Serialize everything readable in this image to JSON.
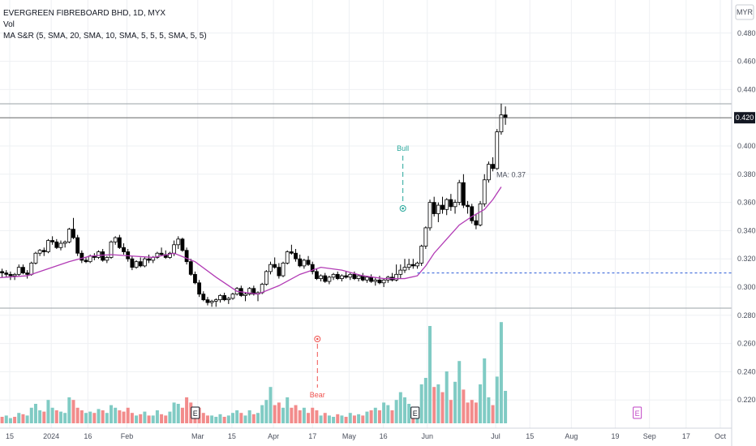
{
  "legend": {
    "title": "EVERGREEN FIBREBOARD BHD, 1D, MYX",
    "vol": "Vol",
    "indicator": "MA S&R (5, SMA, 20, SMA, 10, SMA, 5, 5, 5, SMA, 5, 5)"
  },
  "currency": "MYR",
  "last_price_label": "0.420",
  "ma_label": "MA: 0.37",
  "signals": {
    "bull": "Bull",
    "bear": "Bear"
  },
  "earnings_marker": "E",
  "colors": {
    "up_candle": "#ffffff",
    "down_candle": "#000000",
    "candle_outline": "#000000",
    "ma_line": "#b23bb5",
    "support_line": "#2a5bd7",
    "bull_signal": "#26a69a",
    "bear_signal": "#ef5350",
    "volume_up": "#80cbc4",
    "volume_down": "#f28b8b",
    "future_earnings": "#c043c6"
  },
  "chart_data": {
    "type": "candlestick",
    "price_axis_ticks": [
      "0.480",
      "0.460",
      "0.440",
      "0.420",
      "0.400",
      "0.380",
      "0.360",
      "0.340",
      "0.320",
      "0.300",
      "0.280",
      "0.260",
      "0.240",
      "0.220"
    ],
    "time_axis_labels": [
      {
        "label": "15",
        "date": "2023-12-15"
      },
      {
        "label": "2024",
        "date": "2024-01-01"
      },
      {
        "label": "16",
        "date": "2024-01-16"
      },
      {
        "label": "Feb",
        "date": "2024-02-01"
      },
      {
        "label": "Mar",
        "date": "2024-03-01"
      },
      {
        "label": "15",
        "date": "2024-03-15"
      },
      {
        "label": "Apr",
        "date": "2024-04-01"
      },
      {
        "label": "17",
        "date": "2024-04-17"
      },
      {
        "label": "May",
        "date": "2024-05-02"
      },
      {
        "label": "16",
        "date": "2024-05-16"
      },
      {
        "label": "Jun",
        "date": "2024-06-03"
      },
      {
        "label": "Jul",
        "date": "2024-07-01"
      },
      {
        "label": "15",
        "date": "2024-07-15"
      },
      {
        "label": "Aug",
        "date": "2024-08-01"
      },
      {
        "label": "19",
        "date": "2024-08-19"
      },
      {
        "label": "Sep",
        "date": "2024-09-02"
      },
      {
        "label": "17",
        "date": "2024-09-17"
      },
      {
        "label": "Oct",
        "date": "2024-10-01"
      }
    ],
    "start_date": "2023-12-05",
    "candles": [
      [
        0.305,
        0.308,
        0.302,
        0.305
      ],
      [
        0.305,
        0.31,
        0.303,
        0.309
      ],
      [
        0.309,
        0.316,
        0.308,
        0.314
      ],
      [
        0.314,
        0.316,
        0.31,
        0.311
      ],
      [
        0.311,
        0.313,
        0.307,
        0.31
      ],
      [
        0.31,
        0.312,
        0.307,
        0.309
      ],
      [
        0.309,
        0.311,
        0.305,
        0.308
      ],
      [
        0.308,
        0.31,
        0.305,
        0.309
      ],
      [
        0.309,
        0.316,
        0.308,
        0.314
      ],
      [
        0.314,
        0.316,
        0.309,
        0.31
      ],
      [
        0.31,
        0.312,
        0.306,
        0.309
      ],
      [
        0.309,
        0.318,
        0.308,
        0.317
      ],
      [
        0.317,
        0.325,
        0.316,
        0.324
      ],
      [
        0.324,
        0.327,
        0.322,
        0.326
      ],
      [
        0.326,
        0.328,
        0.322,
        0.325
      ],
      [
        0.325,
        0.334,
        0.324,
        0.333
      ],
      [
        0.333,
        0.336,
        0.33,
        0.332
      ],
      [
        0.332,
        0.334,
        0.327,
        0.328
      ],
      [
        0.328,
        0.333,
        0.326,
        0.331
      ],
      [
        0.331,
        0.333,
        0.328,
        0.332
      ],
      [
        0.332,
        0.342,
        0.331,
        0.341
      ],
      [
        0.341,
        0.349,
        0.334,
        0.335
      ],
      [
        0.335,
        0.337,
        0.322,
        0.324
      ],
      [
        0.324,
        0.326,
        0.317,
        0.319
      ],
      [
        0.319,
        0.321,
        0.317,
        0.318
      ],
      [
        0.318,
        0.323,
        0.317,
        0.322
      ],
      [
        0.322,
        0.324,
        0.319,
        0.321
      ],
      [
        0.321,
        0.326,
        0.32,
        0.325
      ],
      [
        0.325,
        0.327,
        0.318,
        0.319
      ],
      [
        0.319,
        0.322,
        0.317,
        0.321
      ],
      [
        0.321,
        0.333,
        0.32,
        0.332
      ],
      [
        0.332,
        0.336,
        0.33,
        0.335
      ],
      [
        0.335,
        0.337,
        0.327,
        0.328
      ],
      [
        0.328,
        0.331,
        0.323,
        0.325
      ],
      [
        0.325,
        0.327,
        0.318,
        0.32
      ],
      [
        0.32,
        0.322,
        0.312,
        0.314
      ],
      [
        0.314,
        0.319,
        0.313,
        0.318
      ],
      [
        0.318,
        0.321,
        0.314,
        0.315
      ],
      [
        0.315,
        0.321,
        0.314,
        0.32
      ],
      [
        0.32,
        0.323,
        0.317,
        0.319
      ],
      [
        0.319,
        0.322,
        0.317,
        0.321
      ],
      [
        0.321,
        0.325,
        0.32,
        0.324
      ],
      [
        0.324,
        0.328,
        0.322,
        0.323
      ],
      [
        0.323,
        0.326,
        0.32,
        0.321
      ],
      [
        0.321,
        0.325,
        0.32,
        0.324
      ],
      [
        0.324,
        0.333,
        0.322,
        0.33
      ],
      [
        0.33,
        0.336,
        0.327,
        0.334
      ],
      [
        0.334,
        0.335,
        0.325,
        0.326
      ],
      [
        0.326,
        0.328,
        0.316,
        0.318
      ],
      [
        0.318,
        0.32,
        0.308,
        0.309
      ],
      [
        0.309,
        0.311,
        0.302,
        0.303
      ],
      [
        0.303,
        0.305,
        0.293,
        0.295
      ],
      [
        0.295,
        0.297,
        0.29,
        0.291
      ],
      [
        0.291,
        0.293,
        0.287,
        0.289
      ],
      [
        0.289,
        0.291,
        0.286,
        0.29
      ],
      [
        0.29,
        0.292,
        0.286,
        0.291
      ],
      [
        0.291,
        0.295,
        0.289,
        0.294
      ],
      [
        0.294,
        0.296,
        0.29,
        0.291
      ],
      [
        0.291,
        0.293,
        0.288,
        0.292
      ],
      [
        0.292,
        0.296,
        0.291,
        0.295
      ],
      [
        0.295,
        0.3,
        0.294,
        0.299
      ],
      [
        0.299,
        0.301,
        0.293,
        0.294
      ],
      [
        0.294,
        0.296,
        0.29,
        0.295
      ],
      [
        0.295,
        0.3,
        0.294,
        0.299
      ],
      [
        0.299,
        0.301,
        0.294,
        0.295
      ],
      [
        0.295,
        0.297,
        0.29,
        0.296
      ],
      [
        0.296,
        0.303,
        0.295,
        0.302
      ],
      [
        0.302,
        0.312,
        0.301,
        0.311
      ],
      [
        0.311,
        0.318,
        0.309,
        0.316
      ],
      [
        0.316,
        0.321,
        0.313,
        0.314
      ],
      [
        0.314,
        0.317,
        0.306,
        0.308
      ],
      [
        0.308,
        0.318,
        0.307,
        0.317
      ],
      [
        0.317,
        0.326,
        0.316,
        0.325
      ],
      [
        0.325,
        0.33,
        0.323,
        0.324
      ],
      [
        0.324,
        0.327,
        0.318,
        0.32
      ],
      [
        0.32,
        0.323,
        0.314,
        0.315
      ],
      [
        0.315,
        0.32,
        0.313,
        0.319
      ],
      [
        0.319,
        0.322,
        0.315,
        0.316
      ],
      [
        0.316,
        0.318,
        0.309,
        0.311
      ],
      [
        0.311,
        0.313,
        0.305,
        0.306
      ],
      [
        0.306,
        0.309,
        0.304,
        0.308
      ],
      [
        0.308,
        0.31,
        0.303,
        0.304
      ],
      [
        0.304,
        0.308,
        0.302,
        0.307
      ],
      [
        0.307,
        0.31,
        0.305,
        0.309
      ],
      [
        0.309,
        0.311,
        0.305,
        0.306
      ],
      [
        0.306,
        0.309,
        0.304,
        0.308
      ],
      [
        0.308,
        0.311,
        0.306,
        0.307
      ],
      [
        0.307,
        0.31,
        0.305,
        0.309
      ],
      [
        0.309,
        0.311,
        0.305,
        0.306
      ],
      [
        0.306,
        0.309,
        0.304,
        0.308
      ],
      [
        0.308,
        0.31,
        0.304,
        0.305
      ],
      [
        0.305,
        0.308,
        0.303,
        0.307
      ],
      [
        0.307,
        0.309,
        0.303,
        0.304
      ],
      [
        0.304,
        0.307,
        0.301,
        0.305
      ],
      [
        0.305,
        0.308,
        0.302,
        0.303
      ],
      [
        0.303,
        0.306,
        0.3,
        0.305
      ],
      [
        0.305,
        0.308,
        0.303,
        0.307
      ],
      [
        0.307,
        0.31,
        0.304,
        0.305
      ],
      [
        0.305,
        0.316,
        0.304,
        0.309
      ],
      [
        0.309,
        0.316,
        0.306,
        0.312
      ],
      [
        0.312,
        0.32,
        0.31,
        0.314
      ],
      [
        0.314,
        0.32,
        0.312,
        0.316
      ],
      [
        0.316,
        0.32,
        0.313,
        0.315
      ],
      [
        0.315,
        0.318,
        0.313,
        0.317
      ],
      [
        0.317,
        0.33,
        0.315,
        0.329
      ],
      [
        0.329,
        0.343,
        0.327,
        0.342
      ],
      [
        0.342,
        0.362,
        0.34,
        0.36
      ],
      [
        0.36,
        0.364,
        0.35,
        0.352
      ],
      [
        0.352,
        0.36,
        0.346,
        0.358
      ],
      [
        0.358,
        0.364,
        0.352,
        0.355
      ],
      [
        0.355,
        0.363,
        0.351,
        0.362
      ],
      [
        0.362,
        0.366,
        0.354,
        0.357
      ],
      [
        0.357,
        0.362,
        0.352,
        0.36
      ],
      [
        0.36,
        0.376,
        0.358,
        0.374
      ],
      [
        0.374,
        0.38,
        0.356,
        0.358
      ],
      [
        0.358,
        0.361,
        0.352,
        0.357
      ],
      [
        0.357,
        0.359,
        0.345,
        0.347
      ],
      [
        0.347,
        0.352,
        0.341,
        0.344
      ],
      [
        0.344,
        0.361,
        0.343,
        0.359
      ],
      [
        0.359,
        0.38,
        0.357,
        0.376
      ],
      [
        0.376,
        0.389,
        0.374,
        0.387
      ],
      [
        0.387,
        0.392,
        0.382,
        0.384
      ],
      [
        0.384,
        0.412,
        0.383,
        0.41
      ],
      [
        0.41,
        0.43,
        0.408,
        0.422
      ],
      [
        0.422,
        0.428,
        0.415,
        0.42
      ]
    ],
    "volume": [
      [
        0.005,
        1
      ],
      [
        0.007,
        1
      ],
      [
        0.006,
        0
      ],
      [
        0.004,
        1
      ],
      [
        0.005,
        0
      ],
      [
        0.006,
        1
      ],
      [
        0.004,
        1
      ],
      [
        0.005,
        0
      ],
      [
        0.008,
        1
      ],
      [
        0.007,
        0
      ],
      [
        0.006,
        1
      ],
      [
        0.012,
        1
      ],
      [
        0.015,
        1
      ],
      [
        0.01,
        1
      ],
      [
        0.009,
        0
      ],
      [
        0.018,
        1
      ],
      [
        0.012,
        1
      ],
      [
        0.01,
        0
      ],
      [
        0.009,
        1
      ],
      [
        0.008,
        1
      ],
      [
        0.02,
        1
      ],
      [
        0.018,
        0
      ],
      [
        0.012,
        0
      ],
      [
        0.01,
        0
      ],
      [
        0.008,
        1
      ],
      [
        0.009,
        1
      ],
      [
        0.008,
        0
      ],
      [
        0.011,
        1
      ],
      [
        0.01,
        0
      ],
      [
        0.008,
        1
      ],
      [
        0.014,
        1
      ],
      [
        0.012,
        1
      ],
      [
        0.01,
        0
      ],
      [
        0.009,
        0
      ],
      [
        0.012,
        0
      ],
      [
        0.008,
        0
      ],
      [
        0.006,
        1
      ],
      [
        0.007,
        0
      ],
      [
        0.009,
        1
      ],
      [
        0.006,
        0
      ],
      [
        0.006,
        1
      ],
      [
        0.01,
        1
      ],
      [
        0.007,
        0
      ],
      [
        0.006,
        0
      ],
      [
        0.009,
        1
      ],
      [
        0.016,
        1
      ],
      [
        0.015,
        1
      ],
      [
        0.012,
        0
      ],
      [
        0.02,
        0
      ],
      [
        0.016,
        0
      ],
      [
        0.01,
        0
      ],
      [
        0.012,
        0
      ],
      [
        0.008,
        0
      ],
      [
        0.006,
        0
      ],
      [
        0.006,
        1
      ],
      [
        0.005,
        1
      ],
      [
        0.007,
        1
      ],
      [
        0.005,
        0
      ],
      [
        0.006,
        1
      ],
      [
        0.008,
        1
      ],
      [
        0.01,
        1
      ],
      [
        0.008,
        0
      ],
      [
        0.006,
        1
      ],
      [
        0.01,
        1
      ],
      [
        0.007,
        0
      ],
      [
        0.008,
        1
      ],
      [
        0.014,
        1
      ],
      [
        0.018,
        1
      ],
      [
        0.028,
        1
      ],
      [
        0.014,
        0
      ],
      [
        0.016,
        0
      ],
      [
        0.012,
        1
      ],
      [
        0.02,
        1
      ],
      [
        0.012,
        0
      ],
      [
        0.014,
        0
      ],
      [
        0.01,
        0
      ],
      [
        0.012,
        1
      ],
      [
        0.008,
        0
      ],
      [
        0.012,
        0
      ],
      [
        0.01,
        0
      ],
      [
        0.006,
        1
      ],
      [
        0.008,
        0
      ],
      [
        0.006,
        1
      ],
      [
        0.005,
        1
      ],
      [
        0.007,
        0
      ],
      [
        0.006,
        1
      ],
      [
        0.005,
        0
      ],
      [
        0.008,
        1
      ],
      [
        0.006,
        0
      ],
      [
        0.007,
        1
      ],
      [
        0.006,
        0
      ],
      [
        0.009,
        1
      ],
      [
        0.01,
        0
      ],
      [
        0.012,
        1
      ],
      [
        0.01,
        0
      ],
      [
        0.016,
        1
      ],
      [
        0.014,
        1
      ],
      [
        0.01,
        0
      ],
      [
        0.018,
        1
      ],
      [
        0.024,
        1
      ],
      [
        0.02,
        1
      ],
      [
        0.015,
        1
      ],
      [
        0.012,
        0
      ],
      [
        0.012,
        1
      ],
      [
        0.03,
        1
      ],
      [
        0.035,
        1
      ],
      [
        0.075,
        1
      ],
      [
        0.028,
        0
      ],
      [
        0.03,
        1
      ],
      [
        0.024,
        0
      ],
      [
        0.04,
        1
      ],
      [
        0.018,
        0
      ],
      [
        0.032,
        1
      ],
      [
        0.048,
        1
      ],
      [
        0.026,
        0
      ],
      [
        0.016,
        0
      ],
      [
        0.018,
        0
      ],
      [
        0.016,
        0
      ],
      [
        0.03,
        1
      ],
      [
        0.05,
        1
      ],
      [
        0.02,
        1
      ],
      [
        0.014,
        0
      ],
      [
        0.036,
        1
      ],
      [
        0.078,
        1
      ],
      [
        0.025,
        1
      ]
    ],
    "ma": [
      [
        0,
        0.306
      ],
      [
        5,
        0.307
      ],
      [
        10,
        0.308
      ],
      [
        15,
        0.313
      ],
      [
        20,
        0.318
      ],
      [
        25,
        0.322
      ],
      [
        30,
        0.323
      ],
      [
        35,
        0.322
      ],
      [
        40,
        0.321
      ],
      [
        45,
        0.324
      ],
      [
        50,
        0.318
      ],
      [
        55,
        0.307
      ],
      [
        60,
        0.297
      ],
      [
        65,
        0.295
      ],
      [
        70,
        0.301
      ],
      [
        75,
        0.309
      ],
      [
        80,
        0.314
      ],
      [
        85,
        0.312
      ],
      [
        90,
        0.308
      ],
      [
        95,
        0.306
      ],
      [
        100,
        0.306
      ],
      [
        103,
        0.308
      ],
      [
        105,
        0.315
      ],
      [
        107,
        0.324
      ],
      [
        110,
        0.334
      ],
      [
        113,
        0.344
      ],
      [
        116,
        0.35
      ],
      [
        119,
        0.355
      ],
      [
        121,
        0.362
      ],
      [
        123,
        0.371
      ]
    ],
    "support_level": 0.31,
    "last_price": 0.42,
    "bull_signal_date": "2024-05-24",
    "bear_signal_date": "2024-04-19",
    "earnings_dates": [
      "2024-02-29",
      "2024-05-29",
      "2024-08-28"
    ]
  }
}
